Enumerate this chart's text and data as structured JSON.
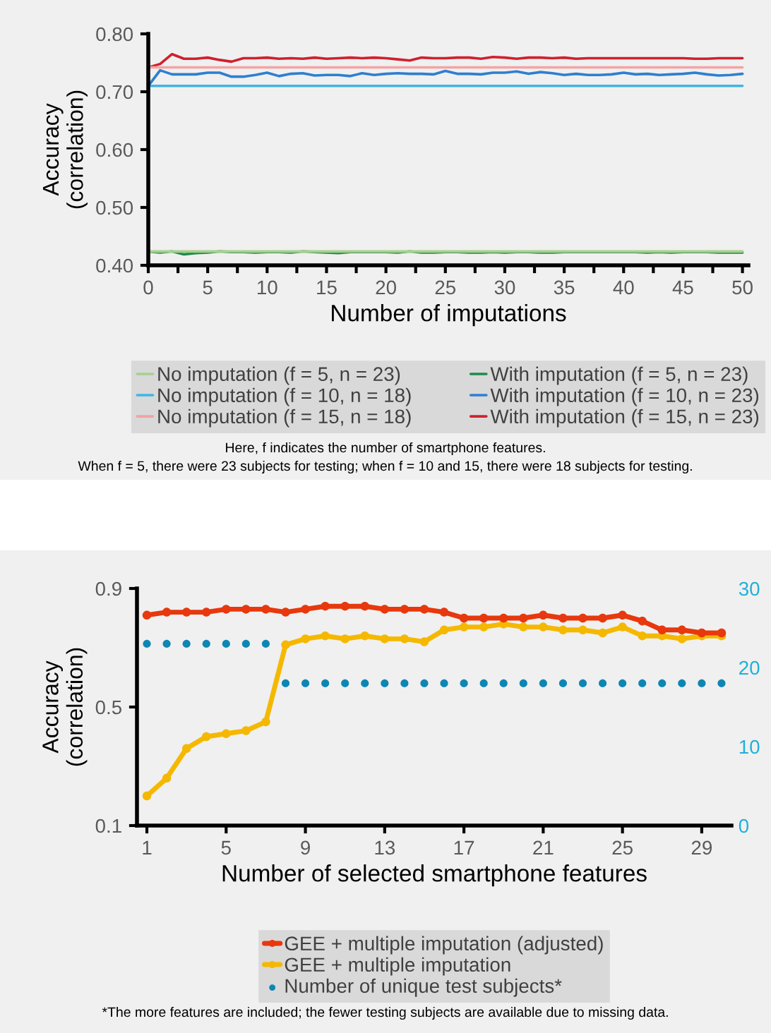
{
  "chart_data": [
    {
      "type": "line",
      "xlabel": "Number of imputations",
      "ylabel": "Accuracy\n(correlation)",
      "x": [
        0,
        1,
        2,
        3,
        4,
        5,
        6,
        7,
        8,
        9,
        10,
        11,
        12,
        13,
        14,
        15,
        16,
        17,
        18,
        19,
        20,
        21,
        22,
        23,
        24,
        25,
        26,
        27,
        28,
        29,
        30,
        31,
        32,
        33,
        34,
        35,
        36,
        37,
        38,
        39,
        40,
        41,
        42,
        43,
        44,
        45,
        46,
        47,
        48,
        49,
        50
      ],
      "series": [
        {
          "name": "No imputation (f = 5, n = 23)",
          "color": "#a8d08d",
          "values": [
            0.424,
            0.424,
            0.424,
            0.424,
            0.424,
            0.424,
            0.424,
            0.424,
            0.424,
            0.424,
            0.424,
            0.424,
            0.424,
            0.424,
            0.424,
            0.424,
            0.424,
            0.424,
            0.424,
            0.424,
            0.424,
            0.424,
            0.424,
            0.424,
            0.424,
            0.424,
            0.424,
            0.424,
            0.424,
            0.424,
            0.424,
            0.424,
            0.424,
            0.424,
            0.424,
            0.424,
            0.424,
            0.424,
            0.424,
            0.424,
            0.424,
            0.424,
            0.424,
            0.424,
            0.424,
            0.424,
            0.424,
            0.424,
            0.424,
            0.424,
            0.424
          ]
        },
        {
          "name": "With imputation (f = 5, n = 23)",
          "color": "#1e8a4c",
          "values": [
            0.424,
            0.422,
            0.424,
            0.419,
            0.421,
            0.422,
            0.424,
            0.423,
            0.423,
            0.422,
            0.423,
            0.423,
            0.422,
            0.424,
            0.423,
            0.422,
            0.421,
            0.423,
            0.423,
            0.423,
            0.423,
            0.422,
            0.424,
            0.422,
            0.422,
            0.423,
            0.423,
            0.422,
            0.422,
            0.423,
            0.422,
            0.423,
            0.423,
            0.422,
            0.422,
            0.423,
            0.423,
            0.423,
            0.423,
            0.423,
            0.423,
            0.423,
            0.422,
            0.423,
            0.422,
            0.423,
            0.423,
            0.423,
            0.422,
            0.422,
            0.422
          ]
        },
        {
          "name": "No imputation (f = 10, n = 18)",
          "color": "#3fb5e5",
          "values": [
            0.71,
            0.71,
            0.71,
            0.71,
            0.71,
            0.71,
            0.71,
            0.71,
            0.71,
            0.71,
            0.71,
            0.71,
            0.71,
            0.71,
            0.71,
            0.71,
            0.71,
            0.71,
            0.71,
            0.71,
            0.71,
            0.71,
            0.71,
            0.71,
            0.71,
            0.71,
            0.71,
            0.71,
            0.71,
            0.71,
            0.71,
            0.71,
            0.71,
            0.71,
            0.71,
            0.71,
            0.71,
            0.71,
            0.71,
            0.71,
            0.71,
            0.71,
            0.71,
            0.71,
            0.71,
            0.71,
            0.71,
            0.71,
            0.71,
            0.71,
            0.71
          ]
        },
        {
          "name": "With imputation (f = 10, n = 23)",
          "color": "#2e7fcf",
          "values": [
            0.71,
            0.737,
            0.73,
            0.73,
            0.73,
            0.733,
            0.733,
            0.726,
            0.726,
            0.729,
            0.733,
            0.727,
            0.731,
            0.732,
            0.728,
            0.729,
            0.729,
            0.727,
            0.732,
            0.729,
            0.731,
            0.732,
            0.731,
            0.731,
            0.73,
            0.736,
            0.731,
            0.731,
            0.73,
            0.733,
            0.733,
            0.735,
            0.731,
            0.734,
            0.732,
            0.729,
            0.731,
            0.729,
            0.729,
            0.73,
            0.733,
            0.73,
            0.731,
            0.729,
            0.73,
            0.731,
            0.733,
            0.73,
            0.728,
            0.729,
            0.731
          ]
        },
        {
          "name": "No imputation (f = 15, n = 18)",
          "color": "#f4a3a3",
          "values": [
            0.742,
            0.742,
            0.742,
            0.742,
            0.742,
            0.742,
            0.742,
            0.742,
            0.742,
            0.742,
            0.742,
            0.742,
            0.742,
            0.742,
            0.742,
            0.742,
            0.742,
            0.742,
            0.742,
            0.742,
            0.742,
            0.742,
            0.742,
            0.742,
            0.742,
            0.742,
            0.742,
            0.742,
            0.742,
            0.742,
            0.742,
            0.742,
            0.742,
            0.742,
            0.742,
            0.742,
            0.742,
            0.742,
            0.742,
            0.742,
            0.742,
            0.742,
            0.742,
            0.742,
            0.742,
            0.742,
            0.742,
            0.742,
            0.742,
            0.742,
            0.742
          ]
        },
        {
          "name": "With imputation (f = 15, n = 23)",
          "color": "#d0202e",
          "values": [
            0.742,
            0.748,
            0.765,
            0.757,
            0.757,
            0.759,
            0.755,
            0.752,
            0.758,
            0.758,
            0.759,
            0.757,
            0.758,
            0.757,
            0.759,
            0.757,
            0.758,
            0.759,
            0.758,
            0.759,
            0.758,
            0.756,
            0.754,
            0.759,
            0.758,
            0.758,
            0.759,
            0.759,
            0.757,
            0.76,
            0.759,
            0.757,
            0.759,
            0.759,
            0.758,
            0.759,
            0.757,
            0.758,
            0.758,
            0.758,
            0.758,
            0.758,
            0.758,
            0.758,
            0.758,
            0.758,
            0.757,
            0.757,
            0.758,
            0.758,
            0.758
          ]
        }
      ],
      "xlim": [
        0,
        50.5
      ],
      "xticks": [
        0,
        {
          "value": 2.5,
          "label": null
        },
        5,
        {
          "value": 7.5,
          "label": null
        },
        10,
        {
          "value": 12.5,
          "label": null
        },
        15,
        {
          "value": 17.5,
          "label": null
        },
        20,
        {
          "value": 22.5,
          "label": null
        },
        25,
        {
          "value": 27.5,
          "label": null
        },
        30,
        {
          "value": 32.5,
          "label": null
        },
        35,
        {
          "value": 37.5,
          "label": null
        },
        40,
        {
          "value": 42.5,
          "label": null
        },
        45,
        {
          "value": 47.5,
          "label": null
        },
        50
      ],
      "ylim": [
        0.4,
        0.8
      ],
      "yticks": [
        {
          "value": 0.4,
          "label": "0.40"
        },
        {
          "value": 0.5,
          "label": "0.50"
        },
        {
          "value": 0.6,
          "label": "0.60"
        },
        {
          "value": 0.7,
          "label": "0.70"
        },
        {
          "value": 0.8,
          "label": "0.80"
        }
      ],
      "grid": false,
      "legend": "bottom",
      "marker": "none",
      "annotations": [
        "Here, f indicates the number of smartphone features.",
        "When f = 5, there were 23 subjects for testing; when f = 10 and 15, there were 18 subjects for testing."
      ]
    },
    {
      "type": "line",
      "xlabel": "Number of selected smartphone features",
      "ylabel": "Accuracy\n(correlation)",
      "x": [
        1,
        2,
        3,
        4,
        5,
        6,
        7,
        8,
        9,
        10,
        11,
        12,
        13,
        14,
        15,
        16,
        17,
        18,
        19,
        20,
        21,
        22,
        23,
        24,
        25,
        26,
        27,
        28,
        29,
        30
      ],
      "series": [
        {
          "name": "GEE + multiple imputation (adjusted)",
          "color": "#e8380d",
          "marker": "circle",
          "values": [
            0.81,
            0.82,
            0.82,
            0.82,
            0.83,
            0.83,
            0.83,
            0.82,
            0.83,
            0.84,
            0.84,
            0.84,
            0.83,
            0.83,
            0.83,
            0.82,
            0.8,
            0.8,
            0.8,
            0.8,
            0.81,
            0.8,
            0.8,
            0.8,
            0.81,
            0.79,
            0.76,
            0.76,
            0.75,
            0.75
          ]
        },
        {
          "name": "GEE + multiple imputation",
          "color": "#f5b800",
          "marker": "circle",
          "values": [
            0.2,
            0.26,
            0.36,
            0.4,
            0.41,
            0.42,
            0.45,
            0.71,
            0.73,
            0.74,
            0.73,
            0.74,
            0.73,
            0.73,
            0.72,
            0.76,
            0.77,
            0.77,
            0.78,
            0.77,
            0.77,
            0.76,
            0.76,
            0.75,
            0.77,
            0.74,
            0.74,
            0.73,
            0.74,
            0.74
          ]
        },
        {
          "name": "Number of unique test subjects*",
          "type": "scatter",
          "axis": "y2",
          "color": "#0e86b4",
          "marker": "circle",
          "values": [
            23,
            23,
            23,
            23,
            23,
            23,
            23,
            18,
            18,
            18,
            18,
            18,
            18,
            18,
            18,
            18,
            18,
            18,
            18,
            18,
            18,
            18,
            18,
            18,
            18,
            18,
            18,
            18,
            18,
            18
          ]
        }
      ],
      "xlim": [
        0.5,
        30.5
      ],
      "xticks": [
        1,
        5,
        9,
        13,
        17,
        21,
        25,
        29
      ],
      "ylim": [
        0.1,
        0.9
      ],
      "yticks": [
        0.1,
        0.5,
        0.9
      ],
      "y2lim": [
        0,
        30
      ],
      "y2ticks": [
        0,
        10,
        20,
        30
      ],
      "grid": false,
      "legend": "bottom",
      "annotations": [
        "*The more features are included; the fewer testing subjects are available due to missing data."
      ]
    }
  ]
}
